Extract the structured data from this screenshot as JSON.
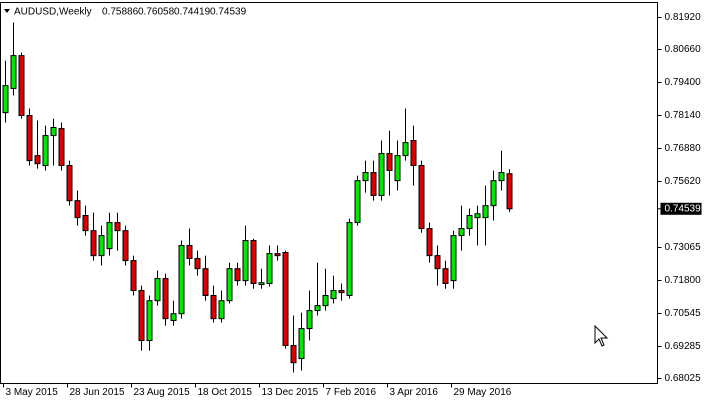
{
  "chart_data": {
    "type": "candlestick",
    "title": "AUDUSD,Weekly",
    "x": [
      "3 May 2015",
      null,
      null,
      null,
      null,
      null,
      null,
      null,
      "28 Jun 2015",
      null,
      null,
      null,
      null,
      null,
      null,
      null,
      "23 Aug 2015",
      null,
      null,
      null,
      null,
      null,
      null,
      null,
      "18 Oct 2015",
      null,
      null,
      null,
      null,
      null,
      null,
      null,
      "13 Dec 2015",
      null,
      null,
      null,
      null,
      null,
      null,
      null,
      "7 Feb 2016",
      null,
      null,
      null,
      null,
      null,
      null,
      null,
      "3 Apr 2016",
      null,
      null,
      null,
      null,
      null,
      null,
      null,
      "29 May 2016",
      null,
      null,
      null,
      null,
      null,
      null,
      null
    ],
    "open": [
      0.7823,
      0.7916,
      0.8042,
      0.7812,
      0.7658,
      0.762,
      0.7735,
      0.7762,
      0.762,
      0.7485,
      0.7428,
      0.737,
      0.7274,
      0.7301,
      0.7401,
      0.737,
      0.7255,
      0.714,
      0.6948,
      0.7101,
      0.7186,
      0.7025,
      0.7051,
      0.7313,
      0.7263,
      0.7224,
      0.7121,
      0.7032,
      0.7101,
      0.7224,
      0.7178,
      0.7332,
      0.7163,
      0.7167,
      0.7282,
      0.7286,
      0.6929,
      0.6879,
      0.6994,
      0.7063,
      0.7082,
      0.7109,
      0.714,
      0.7121,
      0.7401,
      0.7562,
      0.7593,
      0.7505,
      0.7666,
      0.7562,
      0.7658,
      0.7716,
      0.762,
      0.7378,
      0.7274,
      0.7224,
      0.7178,
      0.7351,
      0.7378,
      0.742,
      0.742,
      0.7466,
      0.7562,
      0.75886
    ],
    "high": [
      0.8023,
      0.8169,
      0.8054,
      0.7839,
      0.7793,
      0.7773,
      0.78,
      0.7785,
      0.7639,
      0.7524,
      0.7466,
      0.7439,
      0.7389,
      0.7439,
      0.7439,
      0.7389,
      0.7274,
      0.7159,
      0.7121,
      0.7217,
      0.7205,
      0.7101,
      0.7332,
      0.7378,
      0.7293,
      0.7274,
      0.7159,
      0.714,
      0.7247,
      0.7247,
      0.7389,
      0.7339,
      0.7224,
      0.7313,
      0.7313,
      0.7293,
      0.7044,
      0.7055,
      0.714,
      0.7247,
      0.7224,
      0.7197,
      0.7167,
      0.7416,
      0.7581,
      0.7639,
      0.7639,
      0.7716,
      0.7754,
      0.7716,
      0.7839,
      0.7773,
      0.7639,
      0.7401,
      0.7313,
      0.7255,
      0.737,
      0.7466,
      0.7455,
      0.7466,
      0.7543,
      0.7601,
      0.7677,
      0.76058
    ],
    "low": [
      0.7785,
      0.7889,
      0.78,
      0.762,
      0.7608,
      0.7601,
      0.762,
      0.7601,
      0.7466,
      0.7389,
      0.7351,
      0.7255,
      0.7236,
      0.7274,
      0.7293,
      0.7236,
      0.7121,
      0.6909,
      0.6909,
      0.7082,
      0.7005,
      0.7005,
      0.7032,
      0.7236,
      0.7197,
      0.7101,
      0.7017,
      0.7017,
      0.709,
      0.7159,
      0.7159,
      0.7147,
      0.7147,
      0.7155,
      0.7255,
      0.6917,
      0.6825,
      0.6833,
      0.6948,
      0.7044,
      0.7063,
      0.709,
      0.7101,
      0.7109,
      0.7389,
      0.7516,
      0.7485,
      0.7485,
      0.7505,
      0.7524,
      0.7639,
      0.7543,
      0.7362,
      0.7247,
      0.7159,
      0.7147,
      0.7147,
      0.7293,
      0.7351,
      0.7313,
      0.7313,
      0.7409,
      0.7524,
      0.74419
    ],
    "close": [
      0.7927,
      0.8042,
      0.7812,
      0.7639,
      0.7627,
      0.7735,
      0.7766,
      0.762,
      0.7485,
      0.742,
      0.737,
      0.7274,
      0.7351,
      0.7401,
      0.737,
      0.7255,
      0.714,
      0.6948,
      0.7101,
      0.7186,
      0.7032,
      0.7051,
      0.7313,
      0.7263,
      0.7224,
      0.7121,
      0.7032,
      0.7101,
      0.7224,
      0.7178,
      0.7332,
      0.7167,
      0.717,
      0.7282,
      0.7274,
      0.6929,
      0.6863,
      0.6994,
      0.7063,
      0.7082,
      0.7121,
      0.714,
      0.7132,
      0.7401,
      0.7562,
      0.7593,
      0.7505,
      0.7666,
      0.7601,
      0.7658,
      0.7708,
      0.762,
      0.7378,
      0.7274,
      0.7224,
      0.7167,
      0.7351,
      0.7378,
      0.7428,
      0.7435,
      0.7466,
      0.7562,
      0.7593,
      0.74539
    ],
    "up_color": "#00e600",
    "down_color": "#dd0000",
    "ylim": [
      0.6783,
      0.8246
    ],
    "yticks": [
      {
        "value": 0.8192,
        "label": "0.81920"
      },
      {
        "value": 0.8066,
        "label": "0.80660"
      },
      {
        "value": 0.794,
        "label": "0.79400"
      },
      {
        "value": 0.7814,
        "label": "0.78140"
      },
      {
        "value": 0.7688,
        "label": "0.76880"
      },
      {
        "value": 0.7562,
        "label": "0.75620"
      },
      0.73065,
      {
        "value": 0.718,
        "label": "0.71800"
      },
      0.70545,
      0.69285,
      0.68025
    ]
  }
}
